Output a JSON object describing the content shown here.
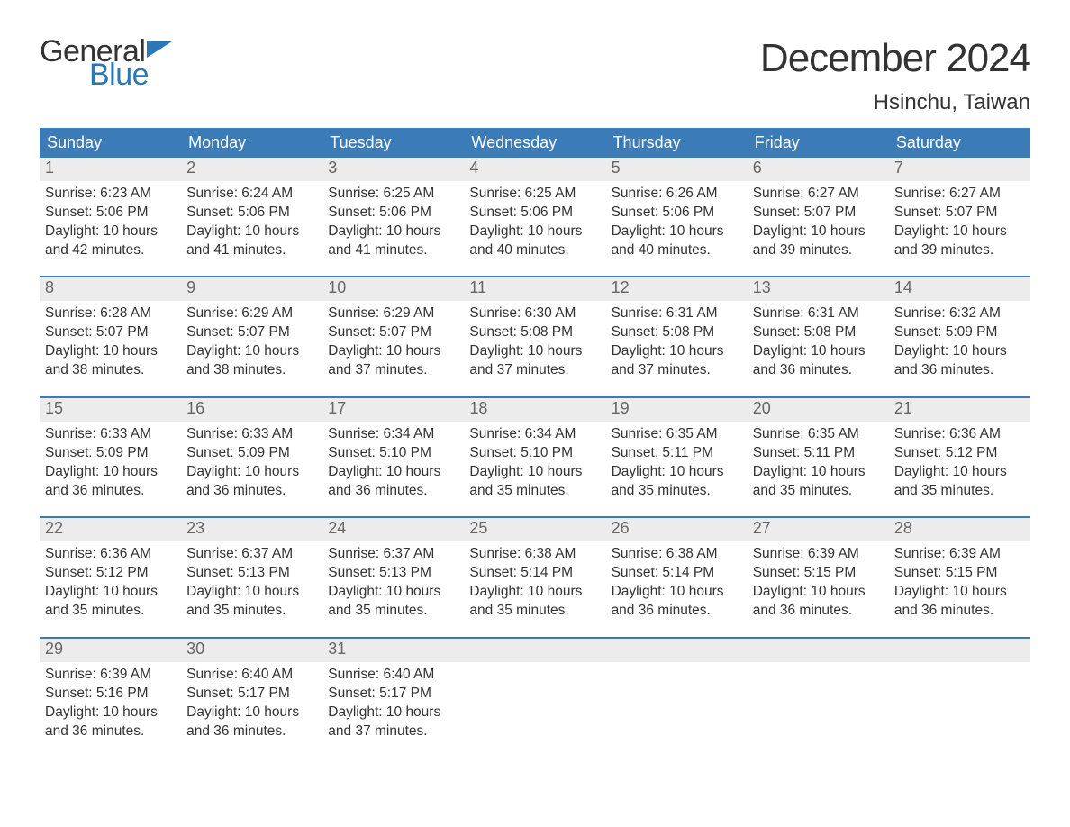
{
  "logo": {
    "word1": "General",
    "word2": "Blue",
    "word1_color": "#333333",
    "word2_color": "#2b77b8",
    "flag_color": "#2b77b8"
  },
  "title": "December 2024",
  "location": "Hsinchu, Taiwan",
  "colors": {
    "header_bg": "#3b7cb8",
    "header_text": "#ffffff",
    "daynum_bg": "#ececec",
    "daynum_text": "#666666",
    "body_text": "#333333",
    "week_divider": "#3b7cb8",
    "page_bg": "#ffffff"
  },
  "typography": {
    "title_fontsize": 44,
    "location_fontsize": 24,
    "weekday_fontsize": 18,
    "daynum_fontsize": 18,
    "detail_fontsize": 15.5,
    "logo_fontsize": 34
  },
  "layout": {
    "columns": 7,
    "rows": 5
  },
  "weekdays": [
    "Sunday",
    "Monday",
    "Tuesday",
    "Wednesday",
    "Thursday",
    "Friday",
    "Saturday"
  ],
  "days": [
    {
      "n": "1",
      "sunrise": "Sunrise: 6:23 AM",
      "sunset": "Sunset: 5:06 PM",
      "daylight1": "Daylight: 10 hours",
      "daylight2": "and 42 minutes."
    },
    {
      "n": "2",
      "sunrise": "Sunrise: 6:24 AM",
      "sunset": "Sunset: 5:06 PM",
      "daylight1": "Daylight: 10 hours",
      "daylight2": "and 41 minutes."
    },
    {
      "n": "3",
      "sunrise": "Sunrise: 6:25 AM",
      "sunset": "Sunset: 5:06 PM",
      "daylight1": "Daylight: 10 hours",
      "daylight2": "and 41 minutes."
    },
    {
      "n": "4",
      "sunrise": "Sunrise: 6:25 AM",
      "sunset": "Sunset: 5:06 PM",
      "daylight1": "Daylight: 10 hours",
      "daylight2": "and 40 minutes."
    },
    {
      "n": "5",
      "sunrise": "Sunrise: 6:26 AM",
      "sunset": "Sunset: 5:06 PM",
      "daylight1": "Daylight: 10 hours",
      "daylight2": "and 40 minutes."
    },
    {
      "n": "6",
      "sunrise": "Sunrise: 6:27 AM",
      "sunset": "Sunset: 5:07 PM",
      "daylight1": "Daylight: 10 hours",
      "daylight2": "and 39 minutes."
    },
    {
      "n": "7",
      "sunrise": "Sunrise: 6:27 AM",
      "sunset": "Sunset: 5:07 PM",
      "daylight1": "Daylight: 10 hours",
      "daylight2": "and 39 minutes."
    },
    {
      "n": "8",
      "sunrise": "Sunrise: 6:28 AM",
      "sunset": "Sunset: 5:07 PM",
      "daylight1": "Daylight: 10 hours",
      "daylight2": "and 38 minutes."
    },
    {
      "n": "9",
      "sunrise": "Sunrise: 6:29 AM",
      "sunset": "Sunset: 5:07 PM",
      "daylight1": "Daylight: 10 hours",
      "daylight2": "and 38 minutes."
    },
    {
      "n": "10",
      "sunrise": "Sunrise: 6:29 AM",
      "sunset": "Sunset: 5:07 PM",
      "daylight1": "Daylight: 10 hours",
      "daylight2": "and 37 minutes."
    },
    {
      "n": "11",
      "sunrise": "Sunrise: 6:30 AM",
      "sunset": "Sunset: 5:08 PM",
      "daylight1": "Daylight: 10 hours",
      "daylight2": "and 37 minutes."
    },
    {
      "n": "12",
      "sunrise": "Sunrise: 6:31 AM",
      "sunset": "Sunset: 5:08 PM",
      "daylight1": "Daylight: 10 hours",
      "daylight2": "and 37 minutes."
    },
    {
      "n": "13",
      "sunrise": "Sunrise: 6:31 AM",
      "sunset": "Sunset: 5:08 PM",
      "daylight1": "Daylight: 10 hours",
      "daylight2": "and 36 minutes."
    },
    {
      "n": "14",
      "sunrise": "Sunrise: 6:32 AM",
      "sunset": "Sunset: 5:09 PM",
      "daylight1": "Daylight: 10 hours",
      "daylight2": "and 36 minutes."
    },
    {
      "n": "15",
      "sunrise": "Sunrise: 6:33 AM",
      "sunset": "Sunset: 5:09 PM",
      "daylight1": "Daylight: 10 hours",
      "daylight2": "and 36 minutes."
    },
    {
      "n": "16",
      "sunrise": "Sunrise: 6:33 AM",
      "sunset": "Sunset: 5:09 PM",
      "daylight1": "Daylight: 10 hours",
      "daylight2": "and 36 minutes."
    },
    {
      "n": "17",
      "sunrise": "Sunrise: 6:34 AM",
      "sunset": "Sunset: 5:10 PM",
      "daylight1": "Daylight: 10 hours",
      "daylight2": "and 36 minutes."
    },
    {
      "n": "18",
      "sunrise": "Sunrise: 6:34 AM",
      "sunset": "Sunset: 5:10 PM",
      "daylight1": "Daylight: 10 hours",
      "daylight2": "and 35 minutes."
    },
    {
      "n": "19",
      "sunrise": "Sunrise: 6:35 AM",
      "sunset": "Sunset: 5:11 PM",
      "daylight1": "Daylight: 10 hours",
      "daylight2": "and 35 minutes."
    },
    {
      "n": "20",
      "sunrise": "Sunrise: 6:35 AM",
      "sunset": "Sunset: 5:11 PM",
      "daylight1": "Daylight: 10 hours",
      "daylight2": "and 35 minutes."
    },
    {
      "n": "21",
      "sunrise": "Sunrise: 6:36 AM",
      "sunset": "Sunset: 5:12 PM",
      "daylight1": "Daylight: 10 hours",
      "daylight2": "and 35 minutes."
    },
    {
      "n": "22",
      "sunrise": "Sunrise: 6:36 AM",
      "sunset": "Sunset: 5:12 PM",
      "daylight1": "Daylight: 10 hours",
      "daylight2": "and 35 minutes."
    },
    {
      "n": "23",
      "sunrise": "Sunrise: 6:37 AM",
      "sunset": "Sunset: 5:13 PM",
      "daylight1": "Daylight: 10 hours",
      "daylight2": "and 35 minutes."
    },
    {
      "n": "24",
      "sunrise": "Sunrise: 6:37 AM",
      "sunset": "Sunset: 5:13 PM",
      "daylight1": "Daylight: 10 hours",
      "daylight2": "and 35 minutes."
    },
    {
      "n": "25",
      "sunrise": "Sunrise: 6:38 AM",
      "sunset": "Sunset: 5:14 PM",
      "daylight1": "Daylight: 10 hours",
      "daylight2": "and 35 minutes."
    },
    {
      "n": "26",
      "sunrise": "Sunrise: 6:38 AM",
      "sunset": "Sunset: 5:14 PM",
      "daylight1": "Daylight: 10 hours",
      "daylight2": "and 36 minutes."
    },
    {
      "n": "27",
      "sunrise": "Sunrise: 6:39 AM",
      "sunset": "Sunset: 5:15 PM",
      "daylight1": "Daylight: 10 hours",
      "daylight2": "and 36 minutes."
    },
    {
      "n": "28",
      "sunrise": "Sunrise: 6:39 AM",
      "sunset": "Sunset: 5:15 PM",
      "daylight1": "Daylight: 10 hours",
      "daylight2": "and 36 minutes."
    },
    {
      "n": "29",
      "sunrise": "Sunrise: 6:39 AM",
      "sunset": "Sunset: 5:16 PM",
      "daylight1": "Daylight: 10 hours",
      "daylight2": "and 36 minutes."
    },
    {
      "n": "30",
      "sunrise": "Sunrise: 6:40 AM",
      "sunset": "Sunset: 5:17 PM",
      "daylight1": "Daylight: 10 hours",
      "daylight2": "and 36 minutes."
    },
    {
      "n": "31",
      "sunrise": "Sunrise: 6:40 AM",
      "sunset": "Sunset: 5:17 PM",
      "daylight1": "Daylight: 10 hours",
      "daylight2": "and 37 minutes."
    }
  ]
}
